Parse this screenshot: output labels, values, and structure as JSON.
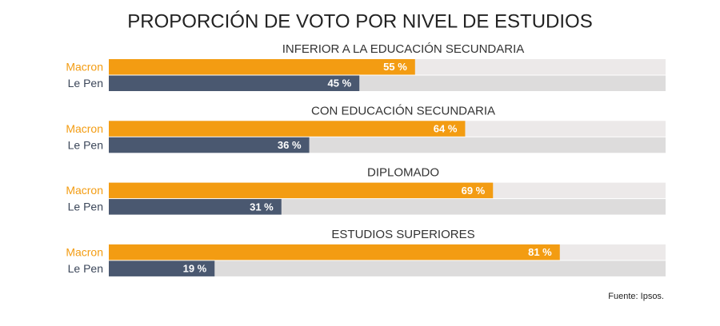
{
  "chart_data": {
    "type": "bar",
    "orientation": "horizontal",
    "title": "PROPORCIÓN DE VOTO POR NIVEL DE ESTUDIOS",
    "categories": [
      "INFERIOR A LA EDUCACIÓN SECUNDARIA",
      "CON EDUCACIÓN SECUNDARIA",
      "DIPLOMADO",
      "ESTUDIOS SUPERIORES"
    ],
    "series": [
      {
        "name": "Macron",
        "color": "#f39c12",
        "values": [
          55,
          64,
          69,
          81
        ],
        "value_labels": [
          "55 %",
          "64 %",
          "69 %",
          "81 %"
        ]
      },
      {
        "name": "Le Pen",
        "color": "#4a5870",
        "values": [
          45,
          36,
          31,
          19
        ],
        "value_labels": [
          "45 %",
          "36 %",
          "31 %",
          "19 %"
        ]
      }
    ],
    "xlim": [
      0,
      100
    ],
    "source": "Fuente: Ipsos."
  }
}
